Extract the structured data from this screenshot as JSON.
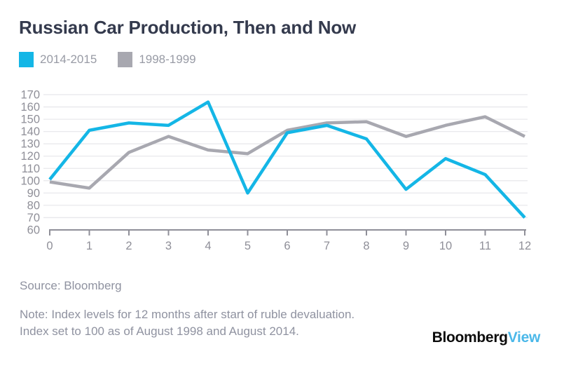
{
  "header": {
    "title": "Russian Car Production, Then and Now"
  },
  "legend": {
    "items": [
      {
        "label": "2014-2015",
        "color": "#14b6e6"
      },
      {
        "label": "1998-1999",
        "color": "#a8a8b0"
      }
    ]
  },
  "chart_data": {
    "type": "line",
    "title": "Russian Car Production, Then and Now",
    "x": [
      0,
      1,
      2,
      3,
      4,
      5,
      6,
      7,
      8,
      9,
      10,
      11,
      12
    ],
    "series": [
      {
        "name": "2014-2015",
        "color": "#14b6e6",
        "values": [
          101,
          141,
          147,
          145,
          164,
          90,
          139,
          145,
          134,
          93,
          118,
          105,
          70
        ]
      },
      {
        "name": "1998-1999",
        "color": "#a8a8b0",
        "values": [
          99,
          94,
          123,
          136,
          125,
          122,
          141,
          147,
          148,
          136,
          145,
          152,
          136
        ]
      }
    ],
    "xlabel": "",
    "ylabel": "",
    "ylim": [
      60,
      170
    ],
    "yticks": [
      60,
      70,
      80,
      90,
      100,
      110,
      120,
      130,
      140,
      150,
      160,
      170
    ],
    "grid": true,
    "legend_position": "top-left"
  },
  "footer": {
    "source": "Source: Bloomberg",
    "note_line1": "Note: Index levels for 12 months after start of ruble devaluation.",
    "note_line2": "Index set to 100 as of August 1998 and August 2014.",
    "logo_bloomberg": "Bloomberg",
    "logo_view": "View"
  },
  "colors": {
    "accent_cyan": "#14b6e6",
    "series_gray": "#a8a8b0",
    "gridline": "#e8e8ec",
    "axis": "#8f8f98",
    "tick_label": "#8f8f98",
    "title_text": "#343a4d",
    "note_text": "#8f92a0",
    "logo_view_blue": "#4bb8e9"
  }
}
